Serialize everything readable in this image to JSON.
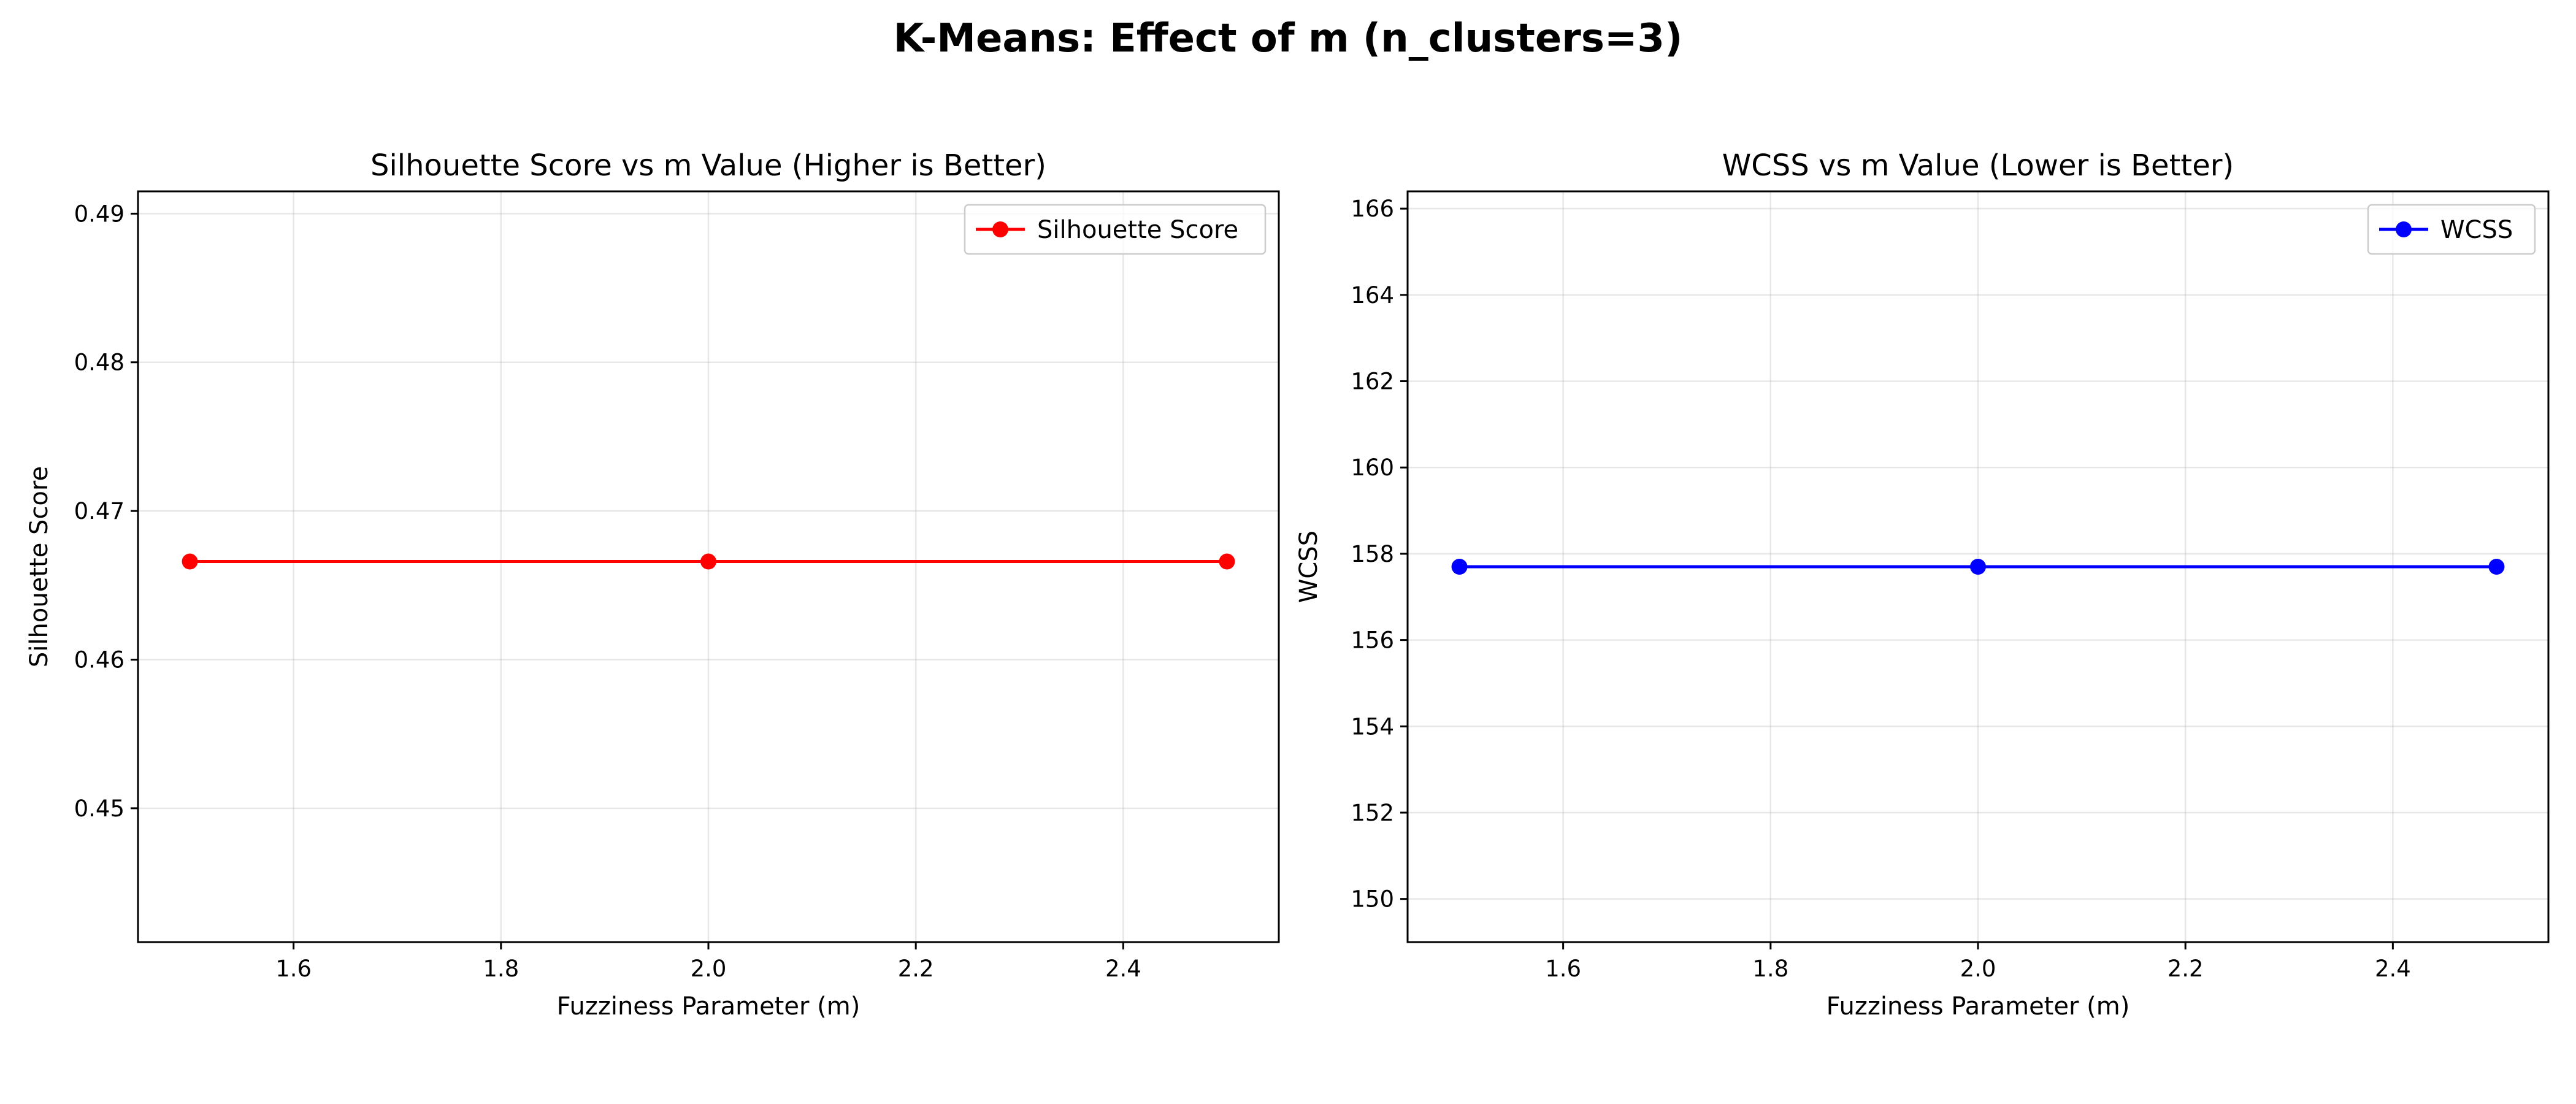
{
  "figure": {
    "suptitle": "K-Means: Effect of m (n_clusters=3)"
  },
  "chart_data": [
    {
      "type": "line",
      "title": "Silhouette Score vs m Value (Higher is Better)",
      "xlabel": "Fuzziness Parameter (m)",
      "ylabel": "Silhouette Score",
      "xlim": [
        1.45,
        2.55
      ],
      "ylim": [
        0.441,
        0.4915
      ],
      "xticks": [
        1.6,
        1.8,
        2.0,
        2.2,
        2.4
      ],
      "xtick_labels": [
        "1.6",
        "1.8",
        "2.0",
        "2.2",
        "2.4"
      ],
      "yticks": [
        0.45,
        0.46,
        0.47,
        0.48,
        0.49
      ],
      "ytick_labels": [
        "0.45",
        "0.46",
        "0.47",
        "0.48",
        "0.49"
      ],
      "grid": true,
      "legend_position": "top-right",
      "series": [
        {
          "name": "Silhouette Score",
          "color": "#ff0000",
          "marker": "circle",
          "x": [
            1.5,
            2.0,
            2.5
          ],
          "y": [
            0.4666,
            0.4666,
            0.4666
          ]
        }
      ]
    },
    {
      "type": "line",
      "title": "WCSS vs m Value (Lower is Better)",
      "xlabel": "Fuzziness Parameter (m)",
      "ylabel": "WCSS",
      "xlim": [
        1.45,
        2.55
      ],
      "ylim": [
        149.0,
        166.4
      ],
      "xticks": [
        1.6,
        1.8,
        2.0,
        2.2,
        2.4
      ],
      "xtick_labels": [
        "1.6",
        "1.8",
        "2.0",
        "2.2",
        "2.4"
      ],
      "yticks": [
        150,
        152,
        154,
        156,
        158,
        160,
        162,
        164,
        166
      ],
      "ytick_labels": [
        "150",
        "152",
        "154",
        "156",
        "158",
        "160",
        "162",
        "164",
        "166"
      ],
      "grid": true,
      "legend_position": "top-right",
      "series": [
        {
          "name": "WCSS",
          "color": "#0000ff",
          "marker": "circle",
          "x": [
            1.5,
            2.0,
            2.5
          ],
          "y": [
            157.7,
            157.7,
            157.7
          ]
        }
      ]
    }
  ]
}
